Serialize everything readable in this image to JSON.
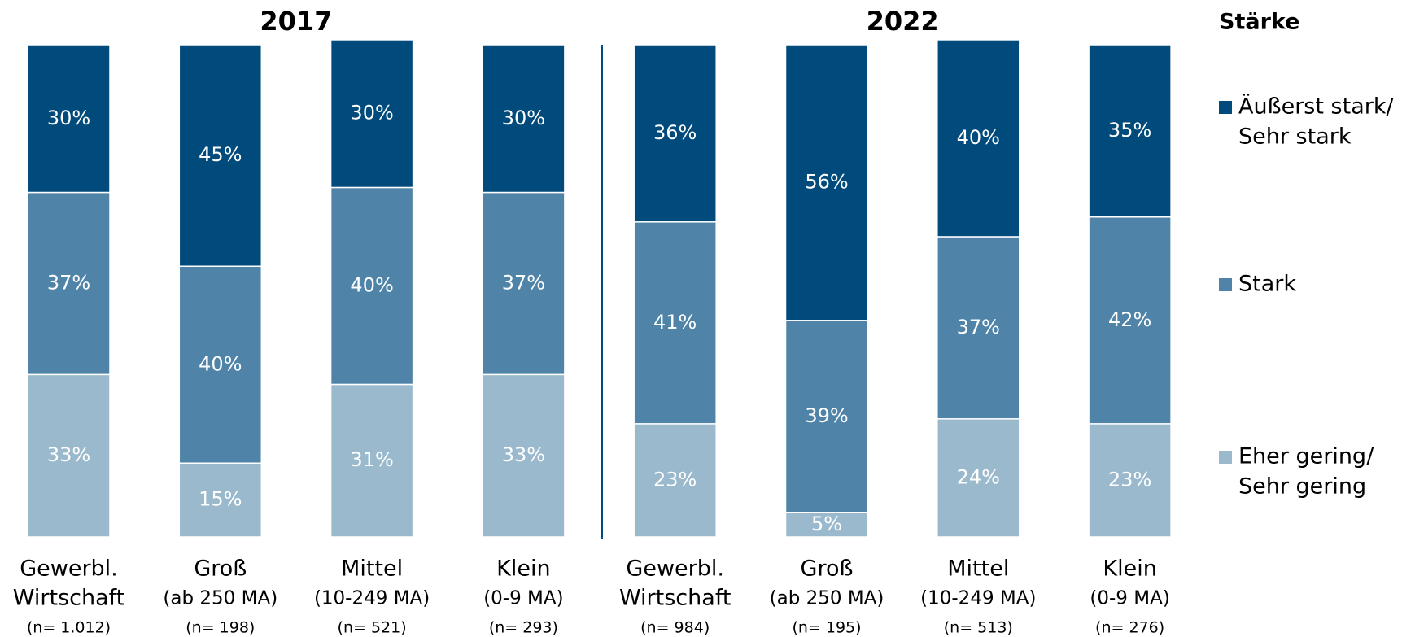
{
  "chart_data": {
    "type": "stacked_bar",
    "legend_title": "Stärke",
    "ylim": [
      0,
      100
    ],
    "series": [
      {
        "name": [
          "Äußerst stark/",
          "Sehr stark"
        ],
        "color": "#004b7c"
      },
      {
        "name": [
          "Stark"
        ],
        "color": "#4f84a8"
      },
      {
        "name": [
          "Eher gering/",
          "Sehr gering"
        ],
        "color": "#9ab9cd"
      }
    ],
    "panels": [
      {
        "title": "2017",
        "categories": [
          [
            "Gewerbl.",
            "Wirtschaft"
          ],
          [
            "Groß",
            "(ab 250 MA)"
          ],
          [
            "Mittel",
            "(10-249 MA)"
          ],
          [
            "Klein",
            "(0-9 MA)"
          ]
        ],
        "notes": [
          "(n= 1.012)",
          "(n= 198)",
          "(n= 521)",
          "(n= 293)"
        ],
        "values": [
          [
            30,
            45,
            30,
            30
          ],
          [
            37,
            40,
            40,
            37
          ],
          [
            33,
            15,
            31,
            33
          ]
        ],
        "value_labels": [
          [
            "30%",
            "45%",
            "30%",
            "30%"
          ],
          [
            "37%",
            "40%",
            "40%",
            "37%"
          ],
          [
            "33%",
            "15%",
            "31%",
            "33%"
          ]
        ]
      },
      {
        "title": "2022",
        "categories": [
          [
            "Gewerbl.",
            "Wirtschaft"
          ],
          [
            "Groß",
            "(ab 250 MA)"
          ],
          [
            "Mittel",
            "(10-249 MA)"
          ],
          [
            "Klein",
            "(0-9 MA)"
          ]
        ],
        "notes": [
          "(n= 984)",
          "(n= 195)",
          "(n= 513)",
          "(n= 276)"
        ],
        "values": [
          [
            36,
            56,
            40,
            35
          ],
          [
            41,
            39,
            37,
            42
          ],
          [
            23,
            5,
            24,
            23
          ]
        ],
        "value_labels": [
          [
            "36%",
            "56%",
            "40%",
            "35%"
          ],
          [
            "41%",
            "39%",
            "37%",
            "42%"
          ],
          [
            "23%",
            "5%",
            "24%",
            "23%"
          ]
        ]
      }
    ]
  }
}
